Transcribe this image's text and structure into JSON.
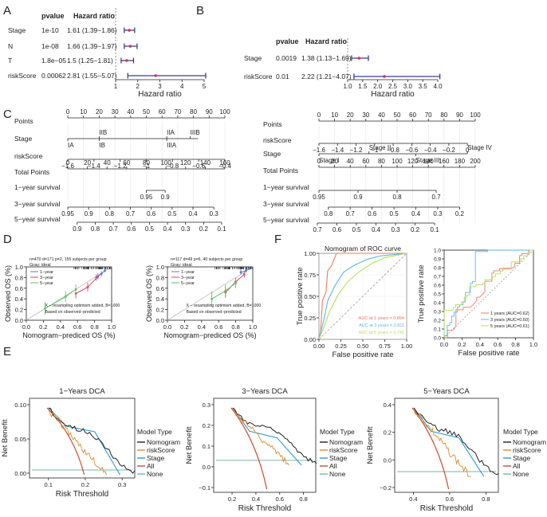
{
  "panel_letters": [
    "A",
    "B",
    "C",
    "D",
    "F",
    "E"
  ],
  "forest_a": {
    "header_p": "pvalue",
    "header_hr": "Hazard ratio",
    "rows": [
      {
        "name": "Stage",
        "p": "1e-10",
        "hr_text": "1.61 (1.39−1.86)",
        "hr": 1.61,
        "lo": 1.39,
        "hi": 1.86
      },
      {
        "name": "N",
        "p": "1e-08",
        "hr_text": "1.66 (1.39−1.97)",
        "hr": 1.66,
        "lo": 1.39,
        "hi": 1.97
      },
      {
        "name": "T",
        "p": "1.8e−05",
        "hr_text": "1.5 (1.25−1.81)",
        "hr": 1.5,
        "lo": 1.25,
        "hi": 1.81
      },
      {
        "name": "riskScore",
        "p": "0.00062",
        "hr_text": "2.81 (1.55−5.07)",
        "hr": 2.81,
        "lo": 1.55,
        "hi": 5.07
      }
    ],
    "xlim": [
      1,
      5
    ],
    "ticks": [
      "1",
      "2",
      "3",
      "4",
      "5"
    ],
    "xlabel": "Hazard ratio"
  },
  "forest_b": {
    "header_p": "pvalue",
    "header_hr": "Hazard ratio",
    "rows": [
      {
        "name": "Stage",
        "p": "0.0019",
        "hr_text": "1.38 (1.13−1.69)",
        "hr": 1.38,
        "lo": 1.13,
        "hi": 1.69
      },
      {
        "name": "riskScore",
        "p": "0.01",
        "hr_text": "2.22 (1.21−4.07)",
        "hr": 2.22,
        "lo": 1.21,
        "hi": 4.07
      }
    ],
    "xlim": [
      1,
      4
    ],
    "ticks": [
      "1.0",
      "1.5",
      "2.0",
      "2.5",
      "3.0",
      "3.5",
      "4.0"
    ],
    "xlabel": "Hazard ratio"
  },
  "nomo_left": {
    "labels": [
      "Points",
      "Stage",
      "riskScore",
      "Total Points",
      "1−year survival",
      "3−year survival",
      "5−year survival"
    ],
    "points_ticks": [
      "0",
      "10",
      "20",
      "30",
      "40",
      "50",
      "60",
      "70",
      "80",
      "90",
      "100"
    ],
    "stage_top": [
      "IIB",
      "IIA",
      "IIIB"
    ],
    "stage_bottom": [
      "IA",
      "IB",
      "IIIA"
    ],
    "risk_ticks": [
      "−1.6",
      "−1.4",
      "−1.2",
      "−1",
      "−0.8",
      "−0.6",
      "−0.4"
    ],
    "total_ticks": [
      "0",
      "20",
      "40",
      "60",
      "80",
      "100",
      "120",
      "140",
      "160"
    ],
    "y1_ticks": [
      "0.95",
      "0.9"
    ],
    "y3_ticks": [
      "0.95",
      "0.9",
      "0.8",
      "0.7",
      "0.6",
      "0.5",
      "0.4",
      "0.3"
    ],
    "y5_ticks": [
      "0.9",
      "0.8",
      "0.7",
      "0.6",
      "0.5",
      "0.4",
      "0.3",
      "0.2",
      "0.1"
    ]
  },
  "nomo_right": {
    "labels": [
      "Points",
      "riskScore",
      "Stage",
      "Total Points",
      "1−year survival",
      "3−year survival",
      "5−year survival"
    ],
    "points_ticks": [
      "0",
      "10",
      "20",
      "30",
      "40",
      "50",
      "60",
      "70",
      "80",
      "90",
      "100"
    ],
    "risk_ticks": [
      "−1.6",
      "−1.4",
      "−1.2",
      "−1",
      "−0.8",
      "−0.6",
      "−0.4",
      "−0.2",
      "0"
    ],
    "stage_labels": [
      "Stage I",
      "Stage II",
      "Stage III",
      "Stage IV"
    ],
    "total_ticks": [
      "0",
      "20",
      "40",
      "60",
      "80",
      "100",
      "120",
      "140",
      "160",
      "180",
      "200"
    ],
    "y1_ticks": [
      "0.95",
      "0.9",
      "0.8",
      "0.7"
    ],
    "y3_ticks": [
      "0.8",
      "0.7",
      "0.6",
      "0.5",
      "0.4",
      "0.3",
      "0.2"
    ],
    "y5_ticks": [
      "0.7",
      "0.6",
      "0.5",
      "0.4",
      "0.3",
      "0.2",
      "0.1"
    ]
  },
  "calib_1": {
    "header": "n=470 d=171 p=2, 155 subjects per group",
    "gray": "Gray: ideal",
    "legend": [
      "1−year",
      "3−year",
      "5−year"
    ],
    "note1": "X − resampling optimism added, B=1000",
    "note2": "Based on observed−predicted",
    "xlabel": "Nomogram−prediced OS (%)",
    "ylabel": "Observed OS (%)",
    "ticks": [
      "0.0",
      "0.2",
      "0.4",
      "0.6",
      "0.8",
      "1.0"
    ],
    "series": [
      {
        "name": "1-year",
        "color": "#4f7fd6",
        "x": [
          0.82,
          0.88,
          0.92
        ],
        "y": [
          0.8,
          0.87,
          0.93
        ],
        "err": [
          0.06,
          0.05,
          0.03
        ]
      },
      {
        "name": "3-year",
        "color": "#d64a5a",
        "x": [
          0.58,
          0.72,
          0.84
        ],
        "y": [
          0.5,
          0.62,
          0.82
        ],
        "err": [
          0.09,
          0.08,
          0.06
        ]
      },
      {
        "name": "5-year",
        "color": "#5cc463",
        "x": [
          0.22,
          0.46,
          0.58
        ],
        "y": [
          0.22,
          0.44,
          0.58
        ],
        "err": [
          0.12,
          0.1,
          0.09
        ]
      }
    ]
  },
  "calib_2": {
    "header": "n=117 d=49 p=6, 40 subjects per group",
    "gray": "Gray: ideal",
    "legend": [
      "1−year",
      "3−year",
      "5−year"
    ],
    "note1": "X − resampling optimism added, B=1000",
    "note2": "Based on observed−predicted",
    "xlabel": "Nomogram−prediced OS (%)",
    "ylabel": "Observed OS (%)",
    "ticks": [
      "0.0",
      "0.2",
      "0.4",
      "0.6",
      "0.8",
      "1.0"
    ],
    "series": [
      {
        "name": "1-year",
        "color": "#4f7fd6",
        "x": [
          0.86,
          0.92,
          0.96
        ],
        "y": [
          0.9,
          0.93,
          0.97
        ],
        "err": [
          0.05,
          0.04,
          0.03
        ]
      },
      {
        "name": "3-year",
        "color": "#d64a5a",
        "x": [
          0.68,
          0.8,
          0.9
        ],
        "y": [
          0.52,
          0.72,
          0.86
        ],
        "err": [
          0.1,
          0.08,
          0.06
        ]
      },
      {
        "name": "5-year",
        "color": "#5cc463",
        "x": [
          0.52,
          0.68,
          0.8
        ],
        "y": [
          0.4,
          0.55,
          0.7
        ],
        "err": [
          0.14,
          0.12,
          0.1
        ]
      }
    ]
  },
  "roc_1": {
    "title": "Nomogram of ROC curve",
    "xlabel": "False positive rate",
    "ylabel": "True positive rate",
    "ticks": [
      "0.00",
      "0.25",
      "0.50",
      "0.75",
      "1.00"
    ],
    "auc_labels": [
      "AUC at 1 years = 0.894",
      "AUC at 3 years = 0.811",
      "AUC at 5 years = 0.741"
    ],
    "colors": [
      "#f07a63",
      "#59b7ee",
      "#b6e05c"
    ]
  },
  "roc_2": {
    "xlabel": "False positive rate",
    "ylabel": "True positive rate",
    "xticks": [
      "0.0",
      "0.2",
      "0.4",
      "0.6",
      "0.8",
      "1.0"
    ],
    "yticks": [
      "0.0",
      "0.1",
      "0.2",
      "0.3",
      "0.4",
      "0.5",
      "0.6",
      "0.7",
      "0.8",
      "0.9",
      "1.0"
    ],
    "legend": [
      "1 years (AUC=0.62)",
      "3 years (AUC=0.60)",
      "5 years (AUC=0.61)"
    ],
    "colors": [
      "#f07a63",
      "#59b7ee",
      "#b6e05c"
    ]
  },
  "dca": [
    {
      "title": "1−Years DCA",
      "xticks": [
        "0.1",
        "0.2",
        "0.3"
      ],
      "yticks": [
        "0.00",
        "0.05",
        "0.10"
      ],
      "xlabel": "Risk Threshold",
      "ylabel": "Net Benefit"
    },
    {
      "title": "3−Years DCA",
      "xticks": [
        "0.2",
        "0.4",
        "0.6",
        "0.8"
      ],
      "yticks": [
        "−0.1",
        "0.0",
        "0.1",
        "0.2",
        "0.3"
      ],
      "xlabel": "Risk Threshold",
      "ylabel": "Net Benefit"
    },
    {
      "title": "5−Years DCA",
      "xticks": [
        "0.4",
        "0.6",
        "0.8"
      ],
      "yticks": [
        "−0.2",
        "0.0",
        "0.2",
        "0.4"
      ],
      "xlabel": "Risk Threshold",
      "ylabel": "Net Benefit"
    }
  ],
  "dca_legend": {
    "title": "Model Type",
    "items": [
      "Nomogram",
      "riskScore",
      "Stage",
      "All",
      "None"
    ],
    "colors": [
      "#222222",
      "#e08a2a",
      "#2a9bd8",
      "#c84b33",
      "#7ab6a8"
    ]
  },
  "chart_data": [
    {
      "type": "forest",
      "title": "A",
      "categories": [
        "Stage",
        "N",
        "T",
        "riskScore"
      ],
      "values": [
        1.61,
        1.66,
        1.5,
        2.81
      ]
    },
    {
      "type": "forest",
      "title": "B",
      "categories": [
        "Stage",
        "riskScore"
      ],
      "values": [
        1.38,
        2.22
      ]
    },
    {
      "type": "roc",
      "title": "Nomogram of ROC curve",
      "series": [
        {
          "name": "1 years",
          "auc": 0.894
        },
        {
          "name": "3 years",
          "auc": 0.811
        },
        {
          "name": "5 years",
          "auc": 0.741
        }
      ]
    },
    {
      "type": "roc",
      "title": "",
      "series": [
        {
          "name": "1 years",
          "auc": 0.62
        },
        {
          "name": "3 years",
          "auc": 0.6
        },
        {
          "name": "5 years",
          "auc": 0.61
        }
      ]
    }
  ]
}
